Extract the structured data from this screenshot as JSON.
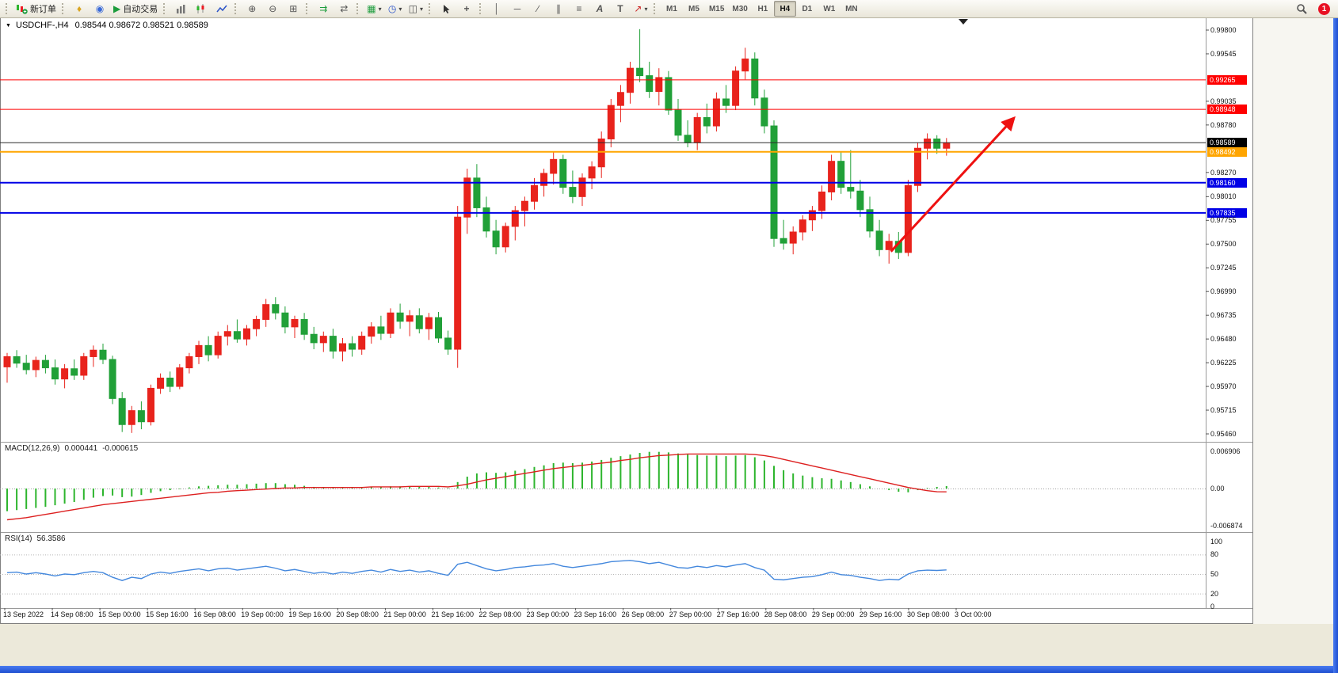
{
  "toolbar": {
    "new_order_label": "新订单",
    "autotrading_label": "自动交易",
    "timeframes": [
      "M1",
      "M5",
      "M15",
      "M30",
      "H1",
      "H4",
      "D1",
      "W1",
      "MN"
    ],
    "active_timeframe": "H4",
    "notification_count": "1",
    "groups": [
      {
        "items": [
          {
            "name": "new-order-button",
            "icon": "new-order",
            "label": "新订单"
          }
        ]
      },
      {
        "items": [
          {
            "name": "metaeditor-button",
            "icon": "metaeditor"
          },
          {
            "name": "community-button",
            "icon": "community"
          },
          {
            "name": "autotrading-button",
            "icon": "play",
            "label": "自动交易"
          }
        ]
      },
      {
        "items": [
          {
            "name": "bar-chart-button",
            "icon": "bars"
          },
          {
            "name": "candlestick-chart-button",
            "icon": "candles"
          },
          {
            "name": "line-chart-button",
            "icon": "polyline"
          }
        ]
      },
      {
        "items": [
          {
            "name": "zoom-in-button",
            "icon": "zoom-in"
          },
          {
            "name": "zoom-out-button",
            "icon": "zoom-out"
          },
          {
            "name": "tile-windows-button",
            "icon": "tile"
          }
        ]
      },
      {
        "items": [
          {
            "name": "auto-scroll-button",
            "icon": "autoscroll"
          },
          {
            "name": "chart-shift-button",
            "icon": "shift"
          }
        ]
      },
      {
        "items": [
          {
            "name": "new-chart-button",
            "icon": "new-chart",
            "caret": true
          },
          {
            "name": "periods-button",
            "icon": "clock",
            "caret": true
          },
          {
            "name": "templates-button",
            "icon": "template",
            "caret": true
          }
        ]
      },
      {
        "items": [
          {
            "name": "cursor-button",
            "icon": "cursor"
          },
          {
            "name": "crosshair-button",
            "icon": "crosshair"
          }
        ]
      },
      {
        "items": [
          {
            "name": "vertical-line-button",
            "icon": "vline"
          },
          {
            "name": "horizontal-line-button",
            "icon": "hline"
          },
          {
            "name": "trendline-button",
            "icon": "tline"
          },
          {
            "name": "channel-button",
            "icon": "channel"
          },
          {
            "name": "fibonacci-button",
            "icon": "fibo"
          },
          {
            "name": "text-button",
            "icon": "text"
          },
          {
            "name": "label-button",
            "icon": "label"
          },
          {
            "name": "arrows-button",
            "icon": "arrows",
            "caret": true
          }
        ]
      }
    ]
  },
  "chart": {
    "title": "USDCHF-,H4",
    "ohlc": "0.98544 0.98672 0.98521 0.98589",
    "symbol": "USDCHF",
    "period": "H4"
  },
  "price_axis": {
    "ticks": [
      "0.99800",
      "0.99545",
      "0.99035",
      "0.98780",
      "0.98270",
      "0.98010",
      "0.97755",
      "0.97500",
      "0.97245",
      "0.96990",
      "0.96735",
      "0.96480",
      "0.96225",
      "0.95970",
      "0.95715",
      "0.95460"
    ]
  },
  "time_axis": [
    "13 Sep 2022",
    "14 Sep 08:00",
    "15 Sep 00:00",
    "15 Sep 16:00",
    "16 Sep 08:00",
    "19 Sep 00:00",
    "19 Sep 16:00",
    "20 Sep 08:00",
    "21 Sep 00:00",
    "21 Sep 16:00",
    "22 Sep 08:00",
    "23 Sep 00:00",
    "23 Sep 16:00",
    "26 Sep 08:00",
    "27 Sep 00:00",
    "27 Sep 16:00",
    "28 Sep 08:00",
    "29 Sep 00:00",
    "29 Sep 16:00",
    "30 Sep 08:00",
    "3 Oct 00:00"
  ],
  "macd": {
    "label": "MACD(12,26,9)",
    "value_main": "0.000441",
    "value_signal": "-0.000615",
    "axis": [
      {
        "label": "0.006906",
        "value": 0.006906
      },
      {
        "label": "0.00",
        "value": 0
      },
      {
        "label": "-0.006874",
        "value": -0.006874
      }
    ]
  },
  "rsi": {
    "label": "RSI(14)",
    "value": "56.3586",
    "axis": [
      {
        "label": "100",
        "value": 100
      },
      {
        "label": "80",
        "value": 80
      },
      {
        "label": "50",
        "value": 50
      },
      {
        "label": "20",
        "value": 20
      },
      {
        "label": "0",
        "value": 0
      }
    ],
    "levels": [
      80,
      50,
      20
    ]
  },
  "chart_data": {
    "type": "candlestick",
    "symbol": "USDCHF",
    "timeframe": "H4",
    "current": {
      "open": 0.98544,
      "high": 0.98672,
      "low": 0.98521,
      "close": 0.98589
    },
    "colors": {
      "bull": "#e8231c",
      "bear": "#21a038",
      "macd_hist": "#2db52d",
      "macd_signal": "#dd2020",
      "rsi_line": "#4488dd",
      "arrow": "#ee1111"
    },
    "candles": [
      [
        0.9618,
        0.9633,
        0.9601,
        0.9629
      ],
      [
        0.9629,
        0.9636,
        0.9617,
        0.9622
      ],
      [
        0.9622,
        0.9631,
        0.961,
        0.9615
      ],
      [
        0.9615,
        0.9629,
        0.9607,
        0.9625
      ],
      [
        0.9625,
        0.9631,
        0.9611,
        0.9617
      ],
      [
        0.9617,
        0.9626,
        0.9599,
        0.9605
      ],
      [
        0.9605,
        0.9621,
        0.9595,
        0.9616
      ],
      [
        0.9616,
        0.9626,
        0.9604,
        0.9609
      ],
      [
        0.9609,
        0.9633,
        0.9604,
        0.9629
      ],
      [
        0.9629,
        0.9641,
        0.9618,
        0.9636
      ],
      [
        0.9636,
        0.9643,
        0.9621,
        0.9626
      ],
      [
        0.9626,
        0.963,
        0.9578,
        0.9584
      ],
      [
        0.9584,
        0.9591,
        0.9548,
        0.9556
      ],
      [
        0.9556,
        0.9576,
        0.9547,
        0.9571
      ],
      [
        0.9571,
        0.9581,
        0.9551,
        0.9559
      ],
      [
        0.9559,
        0.9599,
        0.9555,
        0.9595
      ],
      [
        0.9595,
        0.9611,
        0.9589,
        0.9606
      ],
      [
        0.9606,
        0.9613,
        0.9591,
        0.9597
      ],
      [
        0.9597,
        0.9621,
        0.9594,
        0.9617
      ],
      [
        0.9617,
        0.9633,
        0.9611,
        0.9629
      ],
      [
        0.9629,
        0.9646,
        0.9621,
        0.9641
      ],
      [
        0.9641,
        0.9651,
        0.9624,
        0.9631
      ],
      [
        0.9631,
        0.9656,
        0.9627,
        0.9651
      ],
      [
        0.9651,
        0.9663,
        0.9641,
        0.9656
      ],
      [
        0.9656,
        0.9669,
        0.9644,
        0.9648
      ],
      [
        0.9648,
        0.9663,
        0.9641,
        0.9659
      ],
      [
        0.9659,
        0.9673,
        0.9651,
        0.9669
      ],
      [
        0.9669,
        0.9691,
        0.9661,
        0.9685
      ],
      [
        0.9685,
        0.9693,
        0.9669,
        0.9676
      ],
      [
        0.9676,
        0.9683,
        0.9654,
        0.9661
      ],
      [
        0.9661,
        0.9673,
        0.9649,
        0.9669
      ],
      [
        0.9669,
        0.9676,
        0.9647,
        0.9653
      ],
      [
        0.9653,
        0.9661,
        0.9637,
        0.9644
      ],
      [
        0.9644,
        0.9656,
        0.9634,
        0.9651
      ],
      [
        0.9651,
        0.9659,
        0.9627,
        0.9635
      ],
      [
        0.9635,
        0.9649,
        0.9624,
        0.9643
      ],
      [
        0.9643,
        0.9651,
        0.9629,
        0.9637
      ],
      [
        0.9637,
        0.9656,
        0.9631,
        0.9651
      ],
      [
        0.9651,
        0.9666,
        0.9643,
        0.9661
      ],
      [
        0.9661,
        0.9673,
        0.9647,
        0.9654
      ],
      [
        0.9654,
        0.9681,
        0.9649,
        0.9676
      ],
      [
        0.9676,
        0.9686,
        0.9659,
        0.9667
      ],
      [
        0.9667,
        0.9679,
        0.9651,
        0.9673
      ],
      [
        0.9673,
        0.9681,
        0.9654,
        0.9659
      ],
      [
        0.9659,
        0.9676,
        0.9647,
        0.9671
      ],
      [
        0.9671,
        0.9677,
        0.9644,
        0.9649
      ],
      [
        0.9649,
        0.9657,
        0.9631,
        0.9637
      ],
      [
        0.9637,
        0.9791,
        0.9617,
        0.9779
      ],
      [
        0.9779,
        0.9831,
        0.9761,
        0.9821
      ],
      [
        0.9821,
        0.9836,
        0.9779,
        0.9789
      ],
      [
        0.9789,
        0.9801,
        0.9757,
        0.9764
      ],
      [
        0.9764,
        0.9776,
        0.9739,
        0.9747
      ],
      [
        0.9747,
        0.9773,
        0.9741,
        0.9769
      ],
      [
        0.9769,
        0.9791,
        0.9754,
        0.9786
      ],
      [
        0.9786,
        0.9801,
        0.9769,
        0.9796
      ],
      [
        0.9796,
        0.9821,
        0.9787,
        0.9813
      ],
      [
        0.9813,
        0.9831,
        0.9801,
        0.9826
      ],
      [
        0.9826,
        0.9849,
        0.9814,
        0.9841
      ],
      [
        0.9841,
        0.9846,
        0.9804,
        0.9811
      ],
      [
        0.9811,
        0.9829,
        0.9794,
        0.9801
      ],
      [
        0.9801,
        0.9826,
        0.9791,
        0.9821
      ],
      [
        0.9821,
        0.9839,
        0.9809,
        0.9833
      ],
      [
        0.9833,
        0.9871,
        0.9821,
        0.9863
      ],
      [
        0.9863,
        0.9906,
        0.9854,
        0.9899
      ],
      [
        0.9899,
        0.9921,
        0.9881,
        0.9913
      ],
      [
        0.9913,
        0.9946,
        0.9901,
        0.9939
      ],
      [
        0.9939,
        0.9981,
        0.9924,
        0.9931
      ],
      [
        0.9931,
        0.9946,
        0.9907,
        0.9914
      ],
      [
        0.9914,
        0.9939,
        0.9899,
        0.9929
      ],
      [
        0.9929,
        0.9936,
        0.9889,
        0.9894
      ],
      [
        0.9894,
        0.9906,
        0.9861,
        0.9867
      ],
      [
        0.9867,
        0.9883,
        0.9854,
        0.9859
      ],
      [
        0.9859,
        0.9891,
        0.9851,
        0.9886
      ],
      [
        0.9886,
        0.9901,
        0.9869,
        0.9877
      ],
      [
        0.9877,
        0.9913,
        0.9871,
        0.9906
      ],
      [
        0.9906,
        0.9921,
        0.9891,
        0.9899
      ],
      [
        0.9899,
        0.9941,
        0.9894,
        0.9936
      ],
      [
        0.9936,
        0.9961,
        0.9927,
        0.9949
      ],
      [
        0.9949,
        0.9956,
        0.9899,
        0.9907
      ],
      [
        0.9907,
        0.9916,
        0.9869,
        0.9877
      ],
      [
        0.9877,
        0.9883,
        0.9747,
        0.9756
      ],
      [
        0.9756,
        0.9776,
        0.9744,
        0.9751
      ],
      [
        0.9751,
        0.9769,
        0.9739,
        0.9763
      ],
      [
        0.9763,
        0.9781,
        0.9754,
        0.9776
      ],
      [
        0.9776,
        0.9791,
        0.9764,
        0.9786
      ],
      [
        0.9786,
        0.9813,
        0.9777,
        0.9806
      ],
      [
        0.9806,
        0.9846,
        0.9797,
        0.9839
      ],
      [
        0.9839,
        0.9849,
        0.9804,
        0.9811
      ],
      [
        0.9811,
        0.9851,
        0.9799,
        0.9807
      ],
      [
        0.9807,
        0.9819,
        0.9779,
        0.9787
      ],
      [
        0.9787,
        0.9801,
        0.9757,
        0.9764
      ],
      [
        0.9764,
        0.9776,
        0.9737,
        0.9744
      ],
      [
        0.9744,
        0.9761,
        0.9729,
        0.9753
      ],
      [
        0.9753,
        0.9763,
        0.9734,
        0.9741
      ],
      [
        0.9741,
        0.9819,
        0.9737,
        0.9813
      ],
      [
        0.9813,
        0.9859,
        0.9806,
        0.9853
      ],
      [
        0.9853,
        0.9869,
        0.9841,
        0.9863
      ],
      [
        0.9863,
        0.9867,
        0.9847,
        0.9853
      ],
      [
        0.9853,
        0.9864,
        0.9845,
        0.98589
      ]
    ],
    "hlines": [
      {
        "name": "resistance-line-upper",
        "price": 0.99265,
        "label": "0.99265",
        "color": "#ff0000",
        "width": 1
      },
      {
        "name": "resistance-line-lower",
        "price": 0.98948,
        "label": "0.98948",
        "color": "#ff0000",
        "width": 1
      },
      {
        "name": "current-price-line",
        "price": 0.98589,
        "label": "0.98589",
        "color": "#2b2b2b",
        "width": 1
      },
      {
        "name": "orange-level-line",
        "price": 0.98492,
        "label": "0.98492",
        "color": "#ffa500",
        "width": 2
      },
      {
        "name": "support-line-upper",
        "price": 0.9816,
        "label": "0.98160",
        "color": "#0000e6",
        "width": 2
      },
      {
        "name": "support-line-lower",
        "price": 0.97835,
        "label": "0.97835",
        "color": "#0000e6",
        "width": 2
      }
    ],
    "trend_arrow": {
      "from_index": 92.2,
      "from_price": 0.9742,
      "to_index": 104.9,
      "to_price": 0.9884
    },
    "macd_hist": [
      -0.0042,
      -0.004,
      -0.0038,
      -0.0036,
      -0.0034,
      -0.0031,
      -0.0028,
      -0.0025,
      -0.0021,
      -0.0017,
      -0.0014,
      -0.0013,
      -0.0016,
      -0.0015,
      -0.0012,
      -0.0008,
      -0.0005,
      -0.0003,
      -0.0001,
      0.0002,
      0.0004,
      0.0005,
      0.0006,
      0.0007,
      0.0007,
      0.0008,
      0.0009,
      0.001,
      0.001,
      0.0008,
      0.0007,
      0.0005,
      0.0003,
      0.0002,
      0.0001,
      0.0001,
      0.0001,
      0.0002,
      0.0003,
      0.0003,
      0.0004,
      0.0004,
      0.0004,
      0.0003,
      0.0003,
      0.0002,
      0.0001,
      0.0012,
      0.0022,
      0.0028,
      0.003,
      0.0029,
      0.003,
      0.0033,
      0.0036,
      0.004,
      0.0043,
      0.0047,
      0.0048,
      0.0047,
      0.0048,
      0.005,
      0.0053,
      0.0057,
      0.006,
      0.0063,
      0.0066,
      0.0068,
      0.0068,
      0.0067,
      0.0065,
      0.0063,
      0.0062,
      0.0061,
      0.0061,
      0.006,
      0.0061,
      0.0062,
      0.0058,
      0.0052,
      0.0042,
      0.0034,
      0.0028,
      0.0024,
      0.0021,
      0.0019,
      0.0018,
      0.0015,
      0.0012,
      0.0008,
      0.0004,
      0.0,
      -0.0003,
      -0.0006,
      -0.0007,
      -0.0003,
      0.0001,
      0.0003,
      0.000441
    ],
    "macd_signal": [
      -0.0058,
      -0.0056,
      -0.0054,
      -0.0051,
      -0.0048,
      -0.0045,
      -0.0042,
      -0.0039,
      -0.0036,
      -0.0033,
      -0.003,
      -0.0028,
      -0.0026,
      -0.0024,
      -0.0022,
      -0.002,
      -0.0018,
      -0.0016,
      -0.0014,
      -0.0012,
      -0.001,
      -0.0008,
      -0.0007,
      -0.0005,
      -0.0004,
      -0.0003,
      -0.0002,
      -0.0001,
      0.0,
      0.0001,
      0.0001,
      0.0002,
      0.0002,
      0.0002,
      0.0002,
      0.0002,
      0.0002,
      0.0002,
      0.0003,
      0.0003,
      0.0003,
      0.0003,
      0.0004,
      0.0004,
      0.0004,
      0.0004,
      0.0003,
      0.0005,
      0.0008,
      0.0012,
      0.0016,
      0.0019,
      0.0022,
      0.0025,
      0.0028,
      0.0031,
      0.0034,
      0.0037,
      0.0039,
      0.0041,
      0.0043,
      0.0045,
      0.0047,
      0.0049,
      0.0052,
      0.0054,
      0.0057,
      0.0059,
      0.0061,
      0.0062,
      0.0063,
      0.0064,
      0.0064,
      0.0064,
      0.0064,
      0.0064,
      0.0064,
      0.0064,
      0.0063,
      0.0061,
      0.0058,
      0.0054,
      0.005,
      0.0046,
      0.0042,
      0.0038,
      0.0034,
      0.003,
      0.0026,
      0.0022,
      0.0018,
      0.0014,
      0.001,
      0.0006,
      0.0002,
      -0.0001,
      -0.0004,
      -0.0006,
      -0.000615
    ],
    "rsi_values": [
      52,
      53,
      50,
      52,
      50,
      47,
      50,
      49,
      52,
      54,
      52,
      45,
      40,
      45,
      43,
      50,
      53,
      51,
      54,
      56,
      58,
      55,
      58,
      59,
      56,
      58,
      60,
      62,
      59,
      55,
      57,
      54,
      51,
      53,
      50,
      53,
      51,
      54,
      56,
      53,
      57,
      54,
      56,
      53,
      55,
      51,
      48,
      65,
      68,
      63,
      58,
      55,
      57,
      60,
      61,
      63,
      64,
      66,
      62,
      60,
      62,
      64,
      66,
      69,
      70,
      71,
      69,
      66,
      68,
      64,
      60,
      59,
      62,
      60,
      63,
      61,
      64,
      66,
      60,
      56,
      42,
      41,
      43,
      45,
      46,
      49,
      53,
      49,
      48,
      45,
      43,
      40,
      42,
      41,
      50,
      55,
      56,
      55.5,
      56.36
    ]
  }
}
